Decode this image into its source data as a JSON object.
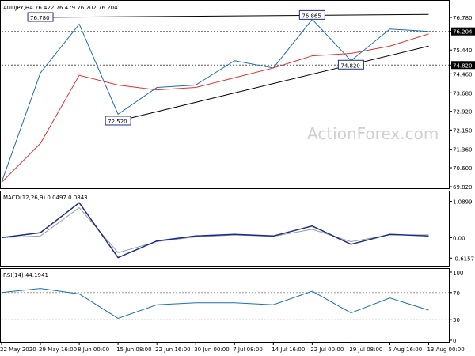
{
  "chart_data": [
    {
      "type": "candlestick",
      "symbol_header": "AUDJPY,H4  76.422 76.479 76.202 76.204",
      "watermark": "ActionForex.com",
      "ylim": [
        69.82,
        77.3
      ],
      "y_ticks": [
        "76.780",
        "76.204",
        "75.440",
        "74.820",
        "74.460",
        "73.680",
        "72.920",
        "72.150",
        "71.360",
        "70.600",
        "69.820"
      ],
      "y_tick_values": [
        76.78,
        76.204,
        75.44,
        74.82,
        74.46,
        73.68,
        72.92,
        72.15,
        71.36,
        70.6,
        69.82
      ],
      "highlighted_ticks": [
        "76.204",
        "74.820"
      ],
      "x_ticks": [
        "22 May 2020",
        "29 May 16:00",
        "8 Jun 00:00",
        "15 Jun 08:00",
        "22 Jun 16:00",
        "30 Jun 00:00",
        "7 Jul 08:00",
        "14 Jul 16:00",
        "22 Jul 00:00",
        "29 Jul 08:00",
        "5 Aug 16:00",
        "13 Aug 00:00"
      ],
      "annotations": [
        "76.780",
        "76.865",
        "72.520",
        "74.820"
      ],
      "annotation_values": [
        {
          "label": "76.780",
          "x": "29 May 16:00",
          "y": 76.78
        },
        {
          "label": "76.865",
          "x": "22 Jul 00:00",
          "y": 76.865
        },
        {
          "label": "72.520",
          "x": "15 Jun 08:00",
          "y": 72.52
        },
        {
          "label": "74.820",
          "x": "29 Jul 08:00",
          "y": 74.82
        }
      ],
      "horizontal_lines": [
        76.204,
        74.82
      ],
      "trendlines": [
        {
          "from": {
            "x": "29 May 16:00",
            "y": 76.78
          },
          "to": {
            "x": "13 Aug 00:00",
            "y": 76.9
          }
        },
        {
          "from": {
            "x": "15 Jun 08:00",
            "y": 72.52
          },
          "to": {
            "x": "13 Aug 00:00",
            "y": 75.6
          }
        }
      ],
      "moving_average_color": "#e03030",
      "candles_color": "#1a6fb0",
      "price_path": [
        [
          "22 May 2020",
          70.0
        ],
        [
          "29 May 16:00",
          74.5
        ],
        [
          "8 Jun 00:00",
          76.5
        ],
        [
          "15 Jun 08:00",
          72.8
        ],
        [
          "22 Jun 16:00",
          73.9
        ],
        [
          "30 Jun 00:00",
          74.0
        ],
        [
          "7 Jul 08:00",
          75.0
        ],
        [
          "14 Jul 16:00",
          74.7
        ],
        [
          "22 Jul 00:00",
          76.7
        ],
        [
          "29 Jul 08:00",
          75.0
        ],
        [
          "5 Aug 16:00",
          76.3
        ],
        [
          "13 Aug 00:00",
          76.204
        ]
      ],
      "ma_path": [
        [
          "22 May 2020",
          70.0
        ],
        [
          "29 May 16:00",
          71.6
        ],
        [
          "8 Jun 00:00",
          74.4
        ],
        [
          "15 Jun 08:00",
          74.0
        ],
        [
          "22 Jun 16:00",
          73.8
        ],
        [
          "30 Jun 00:00",
          73.9
        ],
        [
          "7 Jul 08:00",
          74.3
        ],
        [
          "14 Jul 16:00",
          74.7
        ],
        [
          "22 Jul 00:00",
          75.2
        ],
        [
          "29 Jul 08:00",
          75.3
        ],
        [
          "5 Aug 16:00",
          75.6
        ],
        [
          "13 Aug 00:00",
          76.1
        ]
      ]
    },
    {
      "type": "line",
      "title": "MACD(12,26,9) 0.0497 0.0843",
      "y_ticks": [
        "1.0899",
        "0.00",
        "-0.6157"
      ],
      "y_tick_values": [
        1.0899,
        0.0,
        -0.6157
      ],
      "ylim": [
        -0.8,
        1.2
      ],
      "series_color": "#1a2b8c",
      "signal_color": "#9a9a9a",
      "macd_path": [
        [
          "22 May 2020",
          0.0
        ],
        [
          "29 May 16:00",
          0.15
        ],
        [
          "8 Jun 00:00",
          1.05
        ],
        [
          "15 Jun 08:00",
          -0.6
        ],
        [
          "22 Jun 16:00",
          -0.1
        ],
        [
          "30 Jun 00:00",
          0.05
        ],
        [
          "7 Jul 08:00",
          0.1
        ],
        [
          "14 Jul 16:00",
          0.05
        ],
        [
          "22 Jul 00:00",
          0.35
        ],
        [
          "29 Jul 08:00",
          -0.2
        ],
        [
          "5 Aug 16:00",
          0.1
        ],
        [
          "13 Aug 00:00",
          0.0497
        ]
      ],
      "signal_path": [
        [
          "22 May 2020",
          0.0
        ],
        [
          "29 May 16:00",
          0.05
        ],
        [
          "8 Jun 00:00",
          0.9
        ],
        [
          "15 Jun 08:00",
          -0.45
        ],
        [
          "22 Jun 16:00",
          -0.12
        ],
        [
          "30 Jun 00:00",
          0.02
        ],
        [
          "7 Jul 08:00",
          0.08
        ],
        [
          "14 Jul 16:00",
          0.04
        ],
        [
          "22 Jul 00:00",
          0.25
        ],
        [
          "29 Jul 08:00",
          -0.12
        ],
        [
          "5 Aug 16:00",
          0.08
        ],
        [
          "13 Aug 00:00",
          0.0843
        ]
      ]
    },
    {
      "type": "line",
      "title": "RSI(14) 44.1941",
      "y_ticks": [
        "100",
        "70",
        "30",
        "0"
      ],
      "y_tick_values": [
        100,
        70,
        30,
        0
      ],
      "ylim": [
        0,
        100
      ],
      "series_color": "#1a6fb0",
      "rsi_path": [
        [
          "22 May 2020",
          70
        ],
        [
          "29 May 16:00",
          76
        ],
        [
          "8 Jun 00:00",
          68
        ],
        [
          "15 Jun 08:00",
          32
        ],
        [
          "22 Jun 16:00",
          52
        ],
        [
          "30 Jun 00:00",
          55
        ],
        [
          "7 Jul 08:00",
          55
        ],
        [
          "14 Jul 16:00",
          52
        ],
        [
          "22 Jul 00:00",
          72
        ],
        [
          "29 Jul 08:00",
          40
        ],
        [
          "5 Aug 16:00",
          62
        ],
        [
          "13 Aug 00:00",
          44.1941
        ]
      ]
    }
  ]
}
